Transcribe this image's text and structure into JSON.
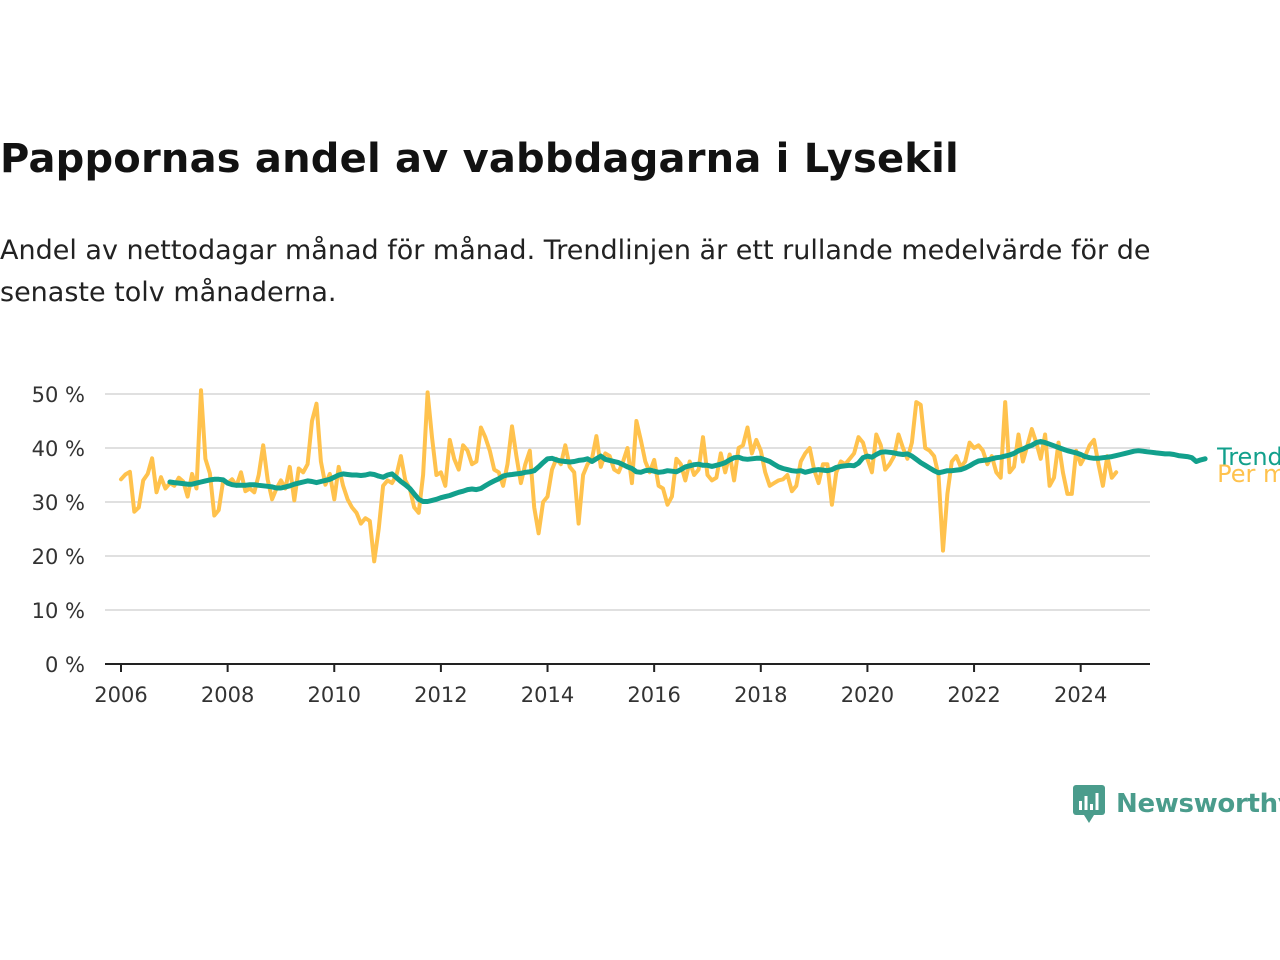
{
  "title": "Pappornas andel av vabbdagarna i Lysekil",
  "subtitle": "Andel av nettodagar månad för månad. Trendlinjen är ett rullande medelvärde för de senaste tolv månaderna.",
  "brand": {
    "name": "Newsworthy",
    "icon": "newsworthy-logo-icon",
    "color": "#4a9c8c"
  },
  "colors": {
    "trend": "#12a08c",
    "monthly": "#ffc24d",
    "grid": "#d6d6d6",
    "axis": "#222222"
  },
  "chart_data": {
    "type": "line",
    "title": "Pappornas andel av vabbdagarna i Lysekil",
    "xlabel": "",
    "ylabel": "",
    "x_range": [
      2005.7,
      2025.3
    ],
    "ylim": [
      0,
      50
    ],
    "y_ticks": [
      0,
      10,
      20,
      30,
      40,
      50
    ],
    "y_tick_labels": [
      "0 %",
      "10 %",
      "20 %",
      "30 %",
      "40 %",
      "50 %"
    ],
    "x_ticks": [
      2006,
      2008,
      2010,
      2012,
      2014,
      2016,
      2018,
      2020,
      2022,
      2024
    ],
    "x_tick_labels": [
      "2006",
      "2008",
      "2010",
      "2012",
      "2014",
      "2016",
      "2018",
      "2020",
      "2022",
      "2024"
    ],
    "grid": true,
    "legend": "inline labels at line ends, right side",
    "series": [
      {
        "name": "Per månad",
        "color": "#ffc24d",
        "start": "2006-01",
        "values": [
          34.2,
          35.1,
          35.6,
          28.2,
          29.0,
          34.0,
          35.2,
          38.1,
          31.8,
          34.6,
          32.5,
          33.5,
          33.0,
          34.5,
          33.8,
          31.0,
          35.2,
          32.5,
          50.7,
          38.0,
          35.3,
          27.5,
          28.5,
          34.0,
          33.5,
          34.2,
          33.0,
          35.5,
          32.0,
          32.5,
          31.8,
          35.0,
          40.5,
          34.2,
          30.5,
          32.5,
          34.0,
          32.5,
          36.5,
          30.3,
          36.2,
          35.5,
          37.0,
          45.0,
          48.2,
          37.5,
          33.2,
          35.2,
          30.5,
          36.5,
          33.0,
          30.5,
          29.0,
          28.0,
          26.0,
          27.0,
          26.5,
          19.0,
          25.0,
          33.0,
          34.0,
          33.5,
          35.0,
          38.5,
          34.0,
          32.5,
          29.0,
          28.0,
          35.0,
          50.3,
          42.0,
          35.0,
          35.5,
          33.0,
          41.5,
          38.0,
          36.0,
          40.5,
          39.5,
          37.0,
          37.5,
          43.8,
          42.0,
          39.5,
          36.0,
          35.5,
          33.0,
          37.0,
          44.0,
          38.5,
          33.5,
          37.0,
          39.5,
          29.0,
          24.2,
          30.0,
          31.0,
          36.0,
          38.0,
          37.0,
          40.5,
          36.5,
          35.5,
          26.0,
          35.0,
          37.0,
          38.0,
          42.2,
          36.5,
          39.0,
          38.5,
          36.0,
          35.5,
          37.5,
          40.0,
          33.5,
          45.0,
          41.5,
          37.5,
          35.5,
          37.8,
          33.0,
          32.5,
          29.5,
          31.0,
          38.0,
          37.0,
          34.0,
          37.5,
          35.0,
          36.0,
          42.0,
          35.0,
          34.0,
          34.5,
          39.0,
          35.5,
          38.8,
          34.0,
          40.0,
          40.5,
          43.8,
          39.0,
          41.5,
          39.5,
          35.5,
          33.0,
          33.5,
          34.0,
          34.2,
          35.0,
          32.0,
          33.0,
          37.5,
          39.0,
          40.0,
          36.0,
          33.5,
          37.0,
          37.0,
          29.5,
          35.5,
          37.5,
          37.0,
          38.0,
          39.0,
          42.0,
          41.0,
          38.0,
          35.5,
          42.5,
          40.5,
          36.0,
          37.0,
          38.5,
          42.5,
          40.0,
          38.0,
          41.0,
          48.5,
          48.0,
          40.0,
          39.5,
          38.5,
          35.0,
          21.0,
          31.5,
          37.5,
          38.5,
          36.5,
          37.5,
          41.0,
          40.0,
          40.5,
          39.5,
          37.0,
          38.5,
          35.5,
          34.5,
          48.5,
          35.5,
          36.5,
          42.5,
          37.5,
          40.5,
          43.5,
          41.0,
          38.0,
          42.5,
          33.0,
          34.5,
          41.0,
          35.5,
          31.5,
          31.5,
          39.5,
          37.0,
          38.5,
          40.5,
          41.5,
          37.0,
          33.0,
          38.5,
          34.5,
          35.5
        ]
      },
      {
        "name": "Trend",
        "color": "#12a08c",
        "start": "2006-12",
        "values": [
          33.7,
          33.6,
          33.5,
          33.4,
          33.3,
          33.3,
          33.5,
          33.7,
          33.9,
          34.1,
          34.2,
          34.2,
          34.1,
          33.5,
          33.2,
          33.1,
          33.1,
          33.1,
          33.2,
          33.2,
          33.1,
          33.0,
          32.9,
          32.8,
          32.6,
          32.6,
          32.8,
          33.0,
          33.3,
          33.5,
          33.7,
          33.9,
          33.8,
          33.6,
          33.8,
          34.0,
          34.2,
          34.6,
          35.0,
          35.2,
          35.1,
          35.0,
          35.0,
          34.9,
          35.0,
          35.2,
          35.1,
          34.8,
          34.6,
          35.0,
          35.2,
          34.5,
          33.8,
          33.2,
          32.5,
          31.5,
          30.5,
          30.1,
          30.1,
          30.3,
          30.5,
          30.8,
          31.0,
          31.2,
          31.5,
          31.8,
          32.0,
          32.3,
          32.4,
          32.3,
          32.5,
          33.0,
          33.5,
          33.9,
          34.3,
          34.8,
          35.0,
          35.1,
          35.2,
          35.3,
          35.5,
          35.6,
          35.8,
          36.5,
          37.3,
          38.0,
          38.1,
          37.8,
          37.6,
          37.5,
          37.4,
          37.5,
          37.7,
          37.8,
          38.0,
          37.5,
          38.0,
          38.5,
          37.9,
          37.7,
          37.5,
          37.3,
          36.9,
          36.5,
          36.2,
          35.6,
          35.5,
          35.8,
          35.9,
          35.7,
          35.5,
          35.6,
          35.8,
          35.7,
          35.6,
          36.0,
          36.5,
          36.7,
          36.9,
          37.0,
          36.8,
          36.8,
          36.6,
          36.8,
          37.0,
          37.3,
          37.8,
          38.2,
          38.3,
          38.0,
          37.9,
          38.0,
          38.1,
          38.1,
          37.8,
          37.5,
          37.0,
          36.5,
          36.2,
          36.0,
          35.8,
          35.7,
          35.8,
          35.5,
          35.7,
          35.9,
          36.0,
          35.9,
          35.8,
          36.0,
          36.4,
          36.6,
          36.7,
          36.8,
          36.7,
          37.2,
          38.2,
          38.5,
          38.3,
          38.8,
          39.2,
          39.3,
          39.2,
          39.1,
          38.9,
          38.8,
          38.9,
          38.5,
          37.9,
          37.3,
          36.8,
          36.3,
          35.8,
          35.4,
          35.6,
          35.8,
          35.8,
          35.9,
          36.0,
          36.3,
          36.7,
          37.2,
          37.6,
          37.7,
          37.8,
          38.0,
          38.2,
          38.3,
          38.5,
          38.7,
          39.0,
          39.5,
          39.8,
          40.2,
          40.5,
          41.0,
          41.2,
          41.0,
          40.7,
          40.4,
          40.1,
          39.8,
          39.5,
          39.3,
          39.1,
          38.8,
          38.4,
          38.2,
          38.1,
          38.1,
          38.2,
          38.3,
          38.4,
          38.6,
          38.8,
          39.0,
          39.2,
          39.4,
          39.5,
          39.4,
          39.3,
          39.2,
          39.1,
          39.0,
          38.9,
          38.9,
          38.8,
          38.6,
          38.5,
          38.4,
          38.2,
          37.5,
          37.8,
          38.0
        ]
      }
    ]
  }
}
